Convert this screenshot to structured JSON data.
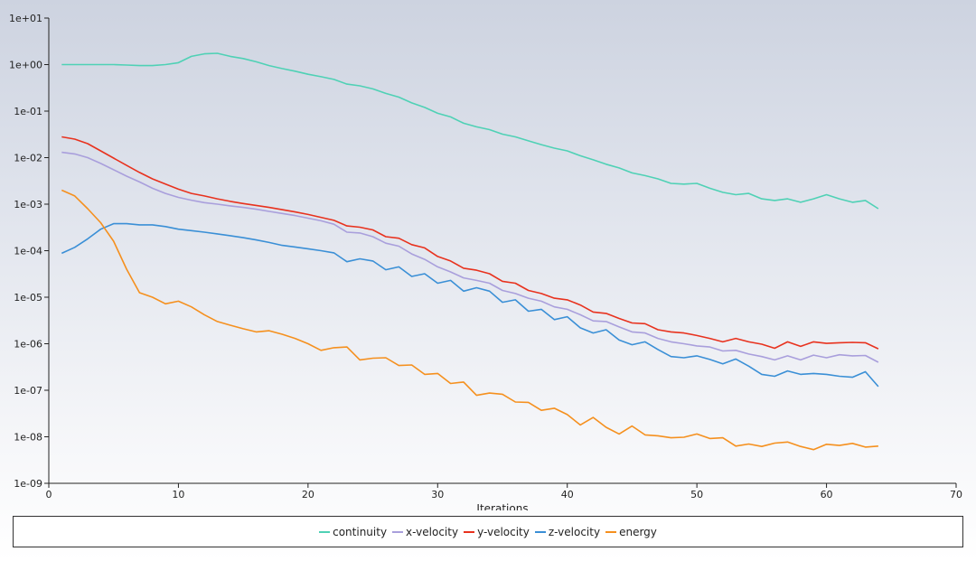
{
  "chart_data": {
    "type": "line",
    "title": "",
    "xlabel": "Iterations",
    "ylabel": "",
    "xlim": [
      0,
      70
    ],
    "ylim": [
      1e-09,
      10
    ],
    "yscale": "log",
    "x_ticks": [
      "0",
      "10",
      "20",
      "30",
      "40",
      "50",
      "60",
      "70"
    ],
    "y_ticks": [
      "1e-09",
      "1e-08",
      "1e-07",
      "1e-06",
      "1e-05",
      "1e-04",
      "1e-03",
      "1e-02",
      "1e-01",
      "1e+00",
      "1e+01"
    ],
    "grid": false,
    "legend_position": "bottom",
    "x": [
      1,
      2,
      3,
      4,
      5,
      6,
      7,
      8,
      9,
      10,
      11,
      12,
      13,
      14,
      15,
      16,
      17,
      18,
      19,
      20,
      21,
      22,
      23,
      24,
      25,
      26,
      27,
      28,
      29,
      30,
      31,
      32,
      33,
      34,
      35,
      36,
      37,
      38,
      39,
      40,
      41,
      42,
      43,
      44,
      45,
      46,
      47,
      48,
      49,
      50,
      51,
      52,
      53,
      54,
      55,
      56,
      57,
      58,
      59,
      60,
      61,
      62,
      63,
      64
    ],
    "series": [
      {
        "name": "continuity",
        "color": "#4fd1b5",
        "values": [
          1.0,
          1.0,
          1.0,
          1.0,
          1.0,
          0.98,
          0.95,
          0.95,
          1.0,
          1.1,
          1.5,
          1.7,
          1.75,
          1.5,
          1.35,
          1.15,
          0.95,
          0.82,
          0.72,
          0.62,
          0.55,
          0.48,
          0.38,
          0.35,
          0.3,
          0.24,
          0.2,
          0.15,
          0.12,
          0.09,
          0.075,
          0.055,
          0.046,
          0.04,
          0.032,
          0.028,
          0.023,
          0.019,
          0.016,
          0.014,
          0.011,
          0.009,
          0.0072,
          0.006,
          0.0047,
          0.0041,
          0.0035,
          0.0028,
          0.0027,
          0.0028,
          0.0022,
          0.0018,
          0.0016,
          0.0017,
          0.0013,
          0.0012,
          0.0013,
          0.0011,
          0.0013,
          0.0016,
          0.0013,
          0.0011,
          0.0012,
          0.0008
        ]
      },
      {
        "name": "x-velocity",
        "color": "#a99fdc",
        "values": [
          0.013,
          0.012,
          0.01,
          0.0075,
          0.0055,
          0.004,
          0.003,
          0.0022,
          0.0017,
          0.0014,
          0.00122,
          0.00108,
          0.001,
          0.00092,
          0.00085,
          0.00078,
          0.0007,
          0.00063,
          0.00057,
          0.0005,
          0.00044,
          0.00037,
          0.00025,
          0.00024,
          0.0002,
          0.000145,
          0.000125,
          8.5e-05,
          6.5e-05,
          4.5e-05,
          3.5e-05,
          2.6e-05,
          2.3e-05,
          2e-05,
          1.4e-05,
          1.2e-05,
          9.5e-06,
          8.2e-06,
          6.2e-06,
          5.5e-06,
          4.2e-06,
          3.1e-06,
          3e-06,
          2.3e-06,
          1.8e-06,
          1.7e-06,
          1.3e-06,
          1.1e-06,
          1e-06,
          9e-07,
          8.5e-07,
          7e-07,
          7.2e-07,
          6e-07,
          5.3e-07,
          4.5e-07,
          5.5e-07,
          4.5e-07,
          5.7e-07,
          5e-07,
          5.8e-07,
          5.5e-07,
          5.6e-07,
          4e-07
        ]
      },
      {
        "name": "y-velocity",
        "color": "#e8321e",
        "values": [
          0.028,
          0.025,
          0.02,
          0.014,
          0.0098,
          0.0068,
          0.0048,
          0.0035,
          0.0027,
          0.0021,
          0.0017,
          0.0015,
          0.0013,
          0.00115,
          0.00103,
          0.00094,
          0.00085,
          0.00076,
          0.00068,
          0.0006,
          0.00052,
          0.00045,
          0.00034,
          0.00032,
          0.00028,
          0.0002,
          0.000185,
          0.000135,
          0.000115,
          7.5e-05,
          6e-05,
          4.2e-05,
          3.8e-05,
          3.2e-05,
          2.2e-05,
          2e-05,
          1.4e-05,
          1.2e-05,
          9.5e-06,
          8.8e-06,
          6.8e-06,
          4.8e-06,
          4.5e-06,
          3.5e-06,
          2.8e-06,
          2.7e-06,
          2e-06,
          1.8e-06,
          1.7e-06,
          1.5e-06,
          1.3e-06,
          1.1e-06,
          1.3e-06,
          1.1e-06,
          9.8e-07,
          8e-07,
          1.1e-06,
          8.8e-07,
          1.1e-06,
          1.02e-06,
          1.05e-06,
          1.07e-06,
          1.05e-06,
          7.8e-07
        ]
      },
      {
        "name": "z-velocity",
        "color": "#3a8fd6",
        "values": [
          8.8e-05,
          0.000118,
          0.00018,
          0.00029,
          0.00038,
          0.00038,
          0.00036,
          0.00036,
          0.00033,
          0.00029,
          0.00027,
          0.00025,
          0.00023,
          0.00021,
          0.00019,
          0.00017,
          0.00015,
          0.00013,
          0.00012,
          0.00011,
          0.0001,
          9e-05,
          5.8e-05,
          6.7e-05,
          6e-05,
          3.9e-05,
          4.5e-05,
          2.8e-05,
          3.2e-05,
          2e-05,
          2.3e-05,
          1.35e-05,
          1.6e-05,
          1.35e-05,
          7.8e-06,
          8.8e-06,
          5e-06,
          5.5e-06,
          3.3e-06,
          3.8e-06,
          2.2e-06,
          1.7e-06,
          2e-06,
          1.2e-06,
          9.5e-07,
          1.1e-06,
          7.5e-07,
          5.3e-07,
          5e-07,
          5.5e-07,
          4.6e-07,
          3.7e-07,
          4.7e-07,
          3.3e-07,
          2.2e-07,
          2e-07,
          2.6e-07,
          2.2e-07,
          2.3e-07,
          2.2e-07,
          2e-07,
          1.9e-07,
          2.5e-07,
          1.2e-07
        ]
      },
      {
        "name": "energy",
        "color": "#f5901e",
        "values": [
          0.002,
          0.0015,
          0.0008,
          0.0004,
          0.00016,
          4e-05,
          1.25e-05,
          1e-05,
          7.2e-06,
          8.2e-06,
          6.2e-06,
          4.2e-06,
          3e-06,
          2.5e-06,
          2.1e-06,
          1.8e-06,
          1.9e-06,
          1.6e-06,
          1.3e-06,
          1e-06,
          7.2e-07,
          8.2e-07,
          8.5e-07,
          4.5e-07,
          4.9e-07,
          5e-07,
          3.4e-07,
          3.5e-07,
          2.2e-07,
          2.3e-07,
          1.4e-07,
          1.5e-07,
          7.8e-08,
          8.7e-08,
          8.2e-08,
          5.6e-08,
          5.5e-08,
          3.7e-08,
          4.1e-08,
          3e-08,
          1.8e-08,
          2.6e-08,
          1.6e-08,
          1.15e-08,
          1.7e-08,
          1.1e-08,
          1.05e-08,
          9.5e-09,
          9.8e-09,
          1.15e-08,
          9.2e-09,
          9.5e-09,
          6.3e-09,
          7e-09,
          6.2e-09,
          7.3e-09,
          7.7e-09,
          6.2e-09,
          5.3e-09,
          6.9e-09,
          6.5e-09,
          7.2e-09,
          6e-09,
          6.3e-09
        ]
      }
    ]
  }
}
